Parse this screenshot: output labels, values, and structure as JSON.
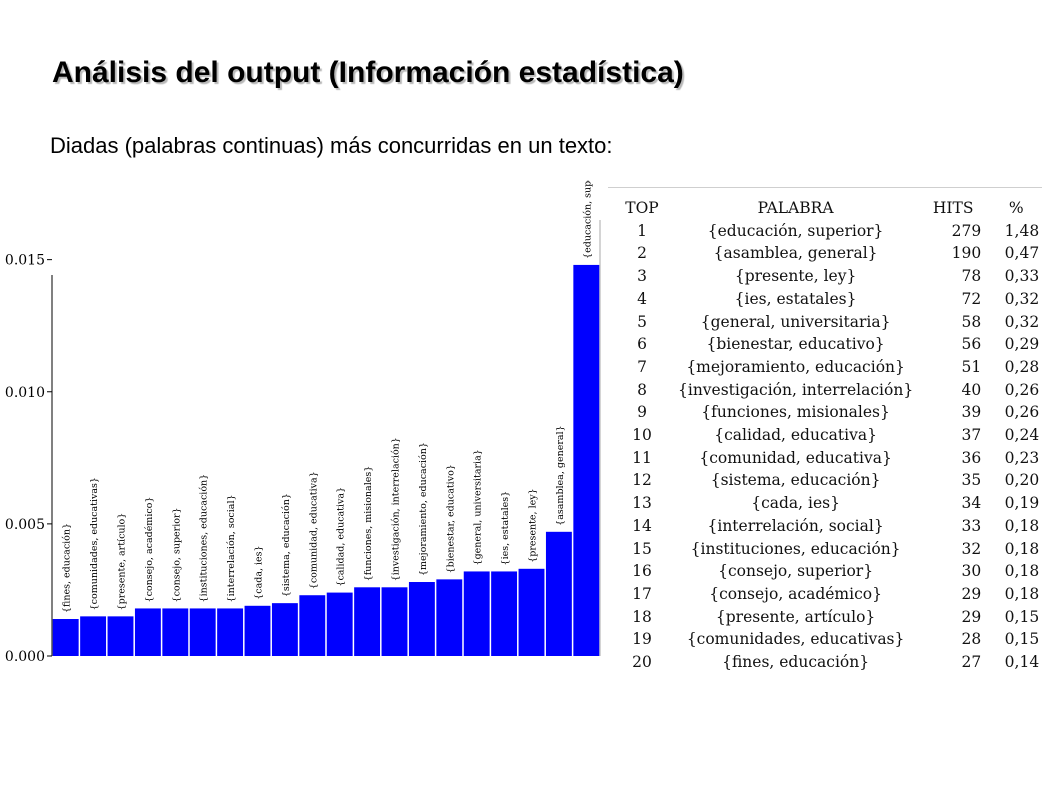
{
  "slide": {
    "title": "Análisis del output (Información estadística)",
    "subtitle": "Diadas (palabras continuas) más concurridas en un texto:"
  },
  "colors": {
    "bar": "#0000ff",
    "axis": "#000000",
    "text": "#000000"
  },
  "chart_data": {
    "type": "bar",
    "title": "",
    "xlabel": "",
    "ylabel": "",
    "ylim": [
      0,
      0.0165
    ],
    "y_ticks": [
      0.0,
      0.005,
      0.01,
      0.015
    ],
    "y_tick_labels": [
      "0.000",
      "0.005",
      "0.010",
      "0.015"
    ],
    "categories": [
      "{fines, educación}",
      "{comunidades, educativas}",
      "{presente, artículo}",
      "{consejo, académico}",
      "{consejo, superior}",
      "{instituciones, educación}",
      "{interrelación, social}",
      "{cada, ies}",
      "{sistema, educación}",
      "{comunidad, educativa}",
      "{calidad, educativa}",
      "{funciones, misionales}",
      "{investigación, interrelación}",
      "{mejoramiento, educación}",
      "{bienestar, educativo}",
      "{general, universitaria}",
      "{ies, estatales}",
      "{presente, ley}",
      "{asamblea, general}",
      "{educación, super"
    ],
    "values": [
      0.0014,
      0.0015,
      0.0015,
      0.0018,
      0.0018,
      0.0018,
      0.0018,
      0.0019,
      0.002,
      0.0023,
      0.0024,
      0.0026,
      0.0026,
      0.0028,
      0.0029,
      0.0032,
      0.0032,
      0.0033,
      0.0047,
      0.0148
    ],
    "grid": false,
    "legend": "none"
  },
  "table": {
    "headers": [
      "TOP",
      "PALABRA",
      "HITS",
      "%"
    ],
    "rows": [
      [
        "1",
        "{educación, superior}",
        "279",
        "1,48"
      ],
      [
        "2",
        "{asamblea, general}",
        "190",
        "0,47"
      ],
      [
        "3",
        "{presente, ley}",
        "78",
        "0,33"
      ],
      [
        "4",
        "{ies, estatales}",
        "72",
        "0,32"
      ],
      [
        "5",
        "{general, universitaria}",
        "58",
        "0,32"
      ],
      [
        "6",
        "{bienestar, educativo}",
        "56",
        "0,29"
      ],
      [
        "7",
        "{mejoramiento, educación}",
        "51",
        "0,28"
      ],
      [
        "8",
        "{investigación, interrelación}",
        "40",
        "0,26"
      ],
      [
        "9",
        "{funciones, misionales}",
        "39",
        "0,26"
      ],
      [
        "10",
        "{calidad, educativa}",
        "37",
        "0,24"
      ],
      [
        "11",
        "{comunidad, educativa}",
        "36",
        "0,23"
      ],
      [
        "12",
        "{sistema, educación}",
        "35",
        "0,20"
      ],
      [
        "13",
        "{cada, ies}",
        "34",
        "0,19"
      ],
      [
        "14",
        "{interrelación, social}",
        "33",
        "0,18"
      ],
      [
        "15",
        "{instituciones, educación}",
        "32",
        "0,18"
      ],
      [
        "16",
        "{consejo, superior}",
        "30",
        "0,18"
      ],
      [
        "17",
        "{consejo, académico}",
        "29",
        "0,18"
      ],
      [
        "18",
        "{presente, artículo}",
        "29",
        "0,15"
      ],
      [
        "19",
        "{comunidades, educativas}",
        "28",
        "0,15"
      ],
      [
        "20",
        "{fines, educación}",
        "27",
        "0,14"
      ]
    ]
  }
}
